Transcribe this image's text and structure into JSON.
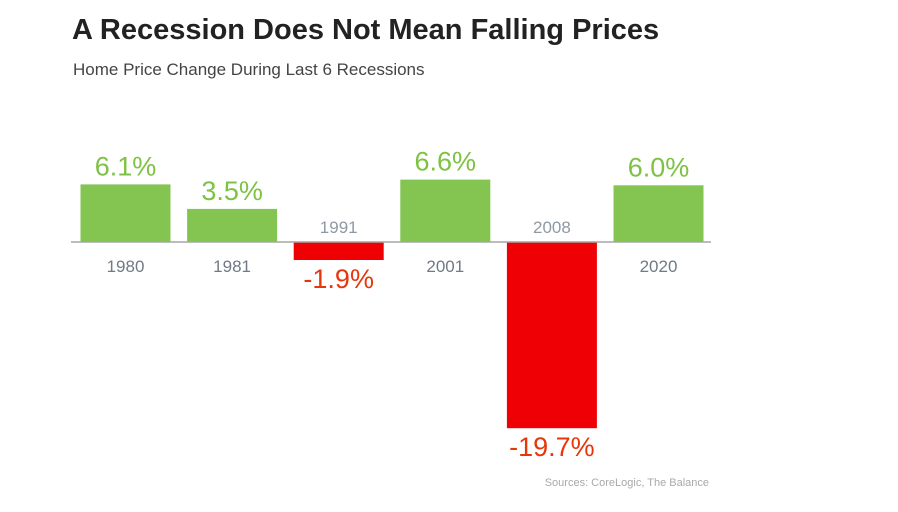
{
  "header": {
    "title": "A Recession Does Not Mean Falling Prices",
    "subtitle": "Home Price Change During Last 6 Recessions"
  },
  "footer": {
    "source": "Sources: CoreLogic, The Balance"
  },
  "colors": {
    "positive": "#84c450",
    "negative": "#ee0005",
    "positive_label": "#7dc242",
    "negative_label": "#e8360b",
    "year_label": "#6f7a86",
    "year_label_muted": "#8f99a4",
    "axis": "#a6a6a6"
  },
  "chart_data": {
    "type": "bar",
    "title": "A Recession Does Not Mean Falling Prices",
    "subtitle": "Home Price Change During Last 6 Recessions",
    "xlabel": "",
    "ylabel": "",
    "grid": false,
    "legend": "none",
    "unit": "%",
    "ylim": [
      -20,
      7
    ],
    "categories": [
      "1980",
      "1981",
      "1991",
      "2001",
      "2008",
      "2020"
    ],
    "values": [
      6.1,
      3.5,
      -1.9,
      6.6,
      -19.7,
      6.0
    ],
    "data_labels": [
      "6.1%",
      "3.5%",
      "-1.9%",
      "6.6%",
      "-19.7%",
      "6.0%"
    ]
  }
}
